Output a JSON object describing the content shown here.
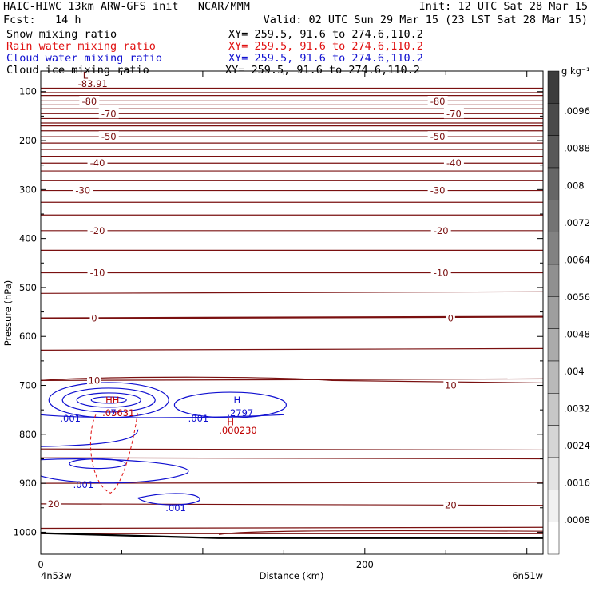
{
  "header": {
    "title": "HAIC-HIWC 13km ARW-GFS init   NCAR/MMM",
    "init": "Init: 12 UTC Sat 28 Mar 15",
    "fcst": "Fcst:   14 h",
    "valid": "Valid: 02 UTC Sun 29 Mar 15 (23 LST Sat 28 Mar 15)",
    "fields": [
      {
        "name": "Snow mixing ratio",
        "xy": "XY= 259.5, 91.6 to 274.6,110.2",
        "color": "#000000"
      },
      {
        "name": "Rain water mixing ratio",
        "xy": "XY= 259.5, 91.6 to 274.6,110.2",
        "color": "#e01010"
      },
      {
        "name": "Cloud water mixing ratio",
        "xy": "XY= 259.5, 91.6 to 274.6,110.2",
        "color": "#1010d0"
      },
      {
        "name": "Cloud ice mixing ratio",
        "xy": "XY= 259.5, 91.6 to 274.6,110.2",
        "color": "#000000"
      }
    ]
  },
  "chart_data": {
    "type": "contour",
    "xlabel": "Distance (km)",
    "ylabel": "Pressure (hPa)",
    "xlim": [
      0,
      310
    ],
    "ylim": [
      1045,
      58
    ],
    "x_ticks": [
      0,
      200
    ],
    "y_ticks": [
      100,
      200,
      300,
      400,
      500,
      600,
      700,
      800,
      900,
      1000
    ],
    "x_endpoints": [
      "4n53w",
      "6n51w"
    ],
    "colorbar": {
      "unit": "g kg⁻¹",
      "labels": [
        ".0096",
        ".0088",
        ".008",
        ".0072",
        ".0064",
        ".0056",
        ".0048",
        ".004",
        ".0032",
        ".0024",
        ".0016",
        ".0008"
      ]
    },
    "temperature_labels": [
      {
        "x": 30,
        "p": 120,
        "text": "-80"
      },
      {
        "x": 245,
        "p": 120,
        "text": "-80"
      },
      {
        "x": 42,
        "p": 145,
        "text": "-70"
      },
      {
        "x": 255,
        "p": 145,
        "text": "-70"
      },
      {
        "x": 42,
        "p": 192,
        "text": "-50"
      },
      {
        "x": 245,
        "p": 192,
        "text": "-50"
      },
      {
        "x": 35,
        "p": 246,
        "text": "-40"
      },
      {
        "x": 255,
        "p": 246,
        "text": "-40"
      },
      {
        "x": 26,
        "p": 302,
        "text": "-30"
      },
      {
        "x": 245,
        "p": 302,
        "text": "-30"
      },
      {
        "x": 35,
        "p": 384,
        "text": "-20"
      },
      {
        "x": 247,
        "p": 384,
        "text": "-20"
      },
      {
        "x": 35,
        "p": 470,
        "text": "-10"
      },
      {
        "x": 247,
        "p": 470,
        "text": "-10"
      },
      {
        "x": 33,
        "p": 563,
        "text": "0"
      },
      {
        "x": 253,
        "p": 563,
        "text": "0"
      },
      {
        "x": 33,
        "p": 690,
        "text": "10"
      },
      {
        "x": 253,
        "p": 700,
        "text": "10"
      },
      {
        "x": 8,
        "p": 942,
        "text": "20"
      },
      {
        "x": 253,
        "p": 945,
        "text": "20"
      }
    ],
    "extrema": [
      {
        "x": 26,
        "p": 67,
        "text": "L",
        "color": "#7a1010"
      },
      {
        "x": 23,
        "p": 84,
        "text": "-83.91",
        "color": "#7a1010"
      },
      {
        "x": 40,
        "p": 730,
        "text": "HH",
        "color": "#c00000"
      },
      {
        "x": 38,
        "p": 756,
        "text": ".05631",
        "color": "#c00000"
      },
      {
        "x": 43,
        "p": 756,
        "text": "7",
        "color": "#1010d0"
      },
      {
        "x": 119,
        "p": 730,
        "text": "H",
        "color": "#1010d0"
      },
      {
        "x": 115,
        "p": 756,
        "text": ".2797",
        "color": "#1010d0"
      },
      {
        "x": 115,
        "p": 775,
        "text": "H",
        "color": "#c00000"
      },
      {
        "x": 110,
        "p": 792,
        "text": ".000230",
        "color": "#c00000"
      },
      {
        "x": 12,
        "p": 768,
        "text": ".001",
        "color": "#1010d0"
      },
      {
        "x": 91,
        "p": 768,
        "text": ".001",
        "color": "#1010d0"
      },
      {
        "x": 20,
        "p": 903,
        "text": ".001",
        "color": "#1010d0"
      },
      {
        "x": 77,
        "p": 950,
        "text": ".001",
        "color": "#1010d0"
      }
    ]
  }
}
